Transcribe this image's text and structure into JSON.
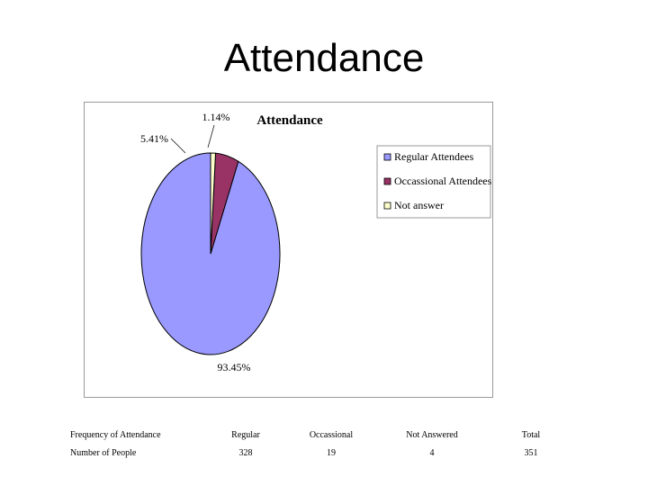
{
  "slide": {
    "title": "Attendance"
  },
  "chart_data": {
    "type": "pie",
    "title": "Attendance",
    "categories": [
      "Regular Attendees",
      "Occassional Attendees",
      "Not answer"
    ],
    "values": [
      93.45,
      5.41,
      1.14
    ],
    "data_labels": [
      "93.45%",
      "5.41%",
      "1.14%"
    ],
    "colors": [
      "#9999ff",
      "#993366",
      "#ffffcc"
    ],
    "legend_position": "right"
  },
  "table": {
    "headers": [
      "Frequency of Attendance",
      "Regular",
      "Occassional",
      "Not Answered",
      "Total"
    ],
    "rows": [
      [
        "Number of People",
        "328",
        "19",
        "4",
        "351"
      ]
    ]
  }
}
